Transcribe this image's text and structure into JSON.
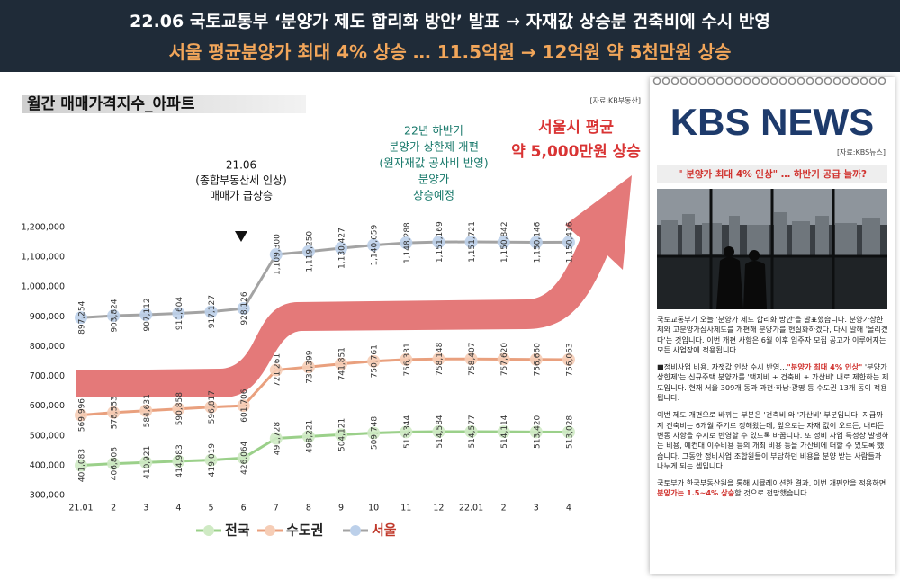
{
  "header": {
    "line1": "22.06 국토교통부 ‘분양가 제도 합리화 방안’ 발표 → 자재값 상승분 건축비에 수시 반영",
    "line2": "서울 평균분양가 최대 4% 상승 … 11.5억원 → 12억원 약 5천만원 상승"
  },
  "chart_data": {
    "type": "line",
    "title": "월간 매매가격지수_아파트",
    "source": "[자료:KB부동산]",
    "categories": [
      "21.01",
      "2",
      "3",
      "4",
      "5",
      "6",
      "7",
      "8",
      "9",
      "10",
      "11",
      "12",
      "22.01",
      "2",
      "3",
      "4"
    ],
    "series": [
      {
        "name": "전국",
        "color": "#9bd08a",
        "marker_color": "#cfeac4",
        "values": [
          401083,
          406808,
          410921,
          414983,
          419019,
          426064,
          491728,
          498221,
          504121,
          509748,
          513344,
          514584,
          514577,
          514114,
          513420,
          513028
        ],
        "value_labels": [
          "401,083",
          "406,808",
          "410,921",
          "414,983",
          "419,019",
          "426,064",
          "491,728",
          "498,221",
          "504,121",
          "509,748",
          "513,344",
          "514,584",
          "514,577",
          "514,114",
          "513,420",
          "513,028"
        ]
      },
      {
        "name": "수도권",
        "color": "#e9a07e",
        "marker_color": "#f6cdb6",
        "values": [
          569996,
          578553,
          584631,
          590858,
          596817,
          601706,
          721261,
          731399,
          741851,
          750761,
          756331,
          758148,
          758407,
          757620,
          756660,
          756063
        ],
        "value_labels": [
          "569,996",
          "578,553",
          "584,631",
          "590,858",
          "596,817",
          "601,706",
          "721,261",
          "731,399",
          "741,851",
          "750,761",
          "756,331",
          "758,148",
          "758,407",
          "757,620",
          "756,660",
          "756,063"
        ]
      },
      {
        "name": "서울",
        "color": "#a3a3a3",
        "marker_color": "#bcd0ea",
        "values": [
          897254,
          903824,
          907112,
          911604,
          917127,
          928126,
          1109300,
          1119250,
          1130427,
          1140659,
          1148288,
          1151169,
          1151721,
          1150842,
          1150146,
          1150416
        ],
        "value_labels": [
          "897,254",
          "903,824",
          "907,112",
          "911,604",
          "917,127",
          "928,126",
          "1,109,300",
          "1,119,250",
          "1,130,427",
          "1,140,659",
          "1,148,288",
          "1,151,169",
          "1,151,721",
          "1,150,842",
          "1,150,146",
          "1,150,416"
        ]
      }
    ],
    "ylim": [
      300000,
      1200000
    ],
    "yticks": [
      {
        "value": 300000,
        "label": "300,000"
      },
      {
        "value": 400000,
        "label": "400,000"
      },
      {
        "value": 500000,
        "label": "500,000"
      },
      {
        "value": 600000,
        "label": "600,000"
      },
      {
        "value": 700000,
        "label": "700,000"
      },
      {
        "value": 800000,
        "label": "800,000"
      },
      {
        "value": 900000,
        "label": "900,000"
      },
      {
        "value": 1000000,
        "label": "1,000,000"
      },
      {
        "value": 1100000,
        "label": "1,100,000"
      },
      {
        "value": 1200000,
        "label": "1,200,000"
      }
    ],
    "annotations": [
      {
        "lines": [
          "21.06",
          "(종합부동산세 인상)",
          "매매가 급상승"
        ],
        "color": "#111111"
      },
      {
        "lines": [
          "22년 하반기",
          "분양가 상한제 개편",
          "(원자재값 공사비 반영)",
          "분양가",
          "상승예정"
        ],
        "color": "#17786a"
      },
      {
        "lines": [
          "서울시 평균",
          "약 5,000만원 상승"
        ],
        "color": "#d93434"
      }
    ]
  },
  "news": {
    "logo": "KBS NEWS",
    "source": "[자료:KBS뉴스]",
    "headline": "\" 분양가 최대 4% 인상\" … 하반기 공급 늘까?",
    "paragraphs": [
      [
        {
          "text": "국토교통부가 오늘 '분양가 제도 합리화 방안'을 발표했습니다. 분양가상한제와 고분양가심사제도를 개편해 분양가를 현실화하겠다, 다시 말해 '올리겠다'는 것입니다. 이번 개편 사항은 6월 이후 입주자 모집 공고가 이루어지는 모든 사업장에 적용됩니다."
        }
      ],
      [
        {
          "text": "■정비사업 비용, 자잿값 인상 수시 반영…"
        },
        {
          "text": "\"분양가 최대 4% 인상\"",
          "color": "#d0312d"
        },
        {
          "text": " '분양가상한제'는 신규주택 분양가를 '택지비 + 건축비 + 가산비' 내로 제한하는 제도입니다. 현재 서울 309개 동과 과천·하남·광명 등 수도권 13개 동이 적용됩니다."
        }
      ],
      [
        {
          "text": "이번 제도 개편으로 바뀌는 부분은 '건축비'와 '가산비' 부분입니다. 지금까지 건축비는 6개월 주기로 정해왔는데, 앞으로는 자재 값이 오르든, 내리든 변동 사항을 수시로 반영할 수 있도록 바꿉니다. 또 정비 사업 특성상 발생하는 비용, 예컨대 이주비용 등의 개최 비용 등을 가산비에 더할 수 있도록 했습니다. 그동안 정비사업 조합원들이 부담하던 비용을 분양 받는 사람들과 나누게 되는 셈입니다."
        }
      ],
      [
        {
          "text": "국토부가 한국부동산원을 통해 시뮬레이션한 결과, 이번 개편안을 적용하면 "
        },
        {
          "text": "분양가는 1.5~4% 상승",
          "color": "#d0312d"
        },
        {
          "text": "할 것으로 전망했습니다."
        }
      ]
    ]
  }
}
